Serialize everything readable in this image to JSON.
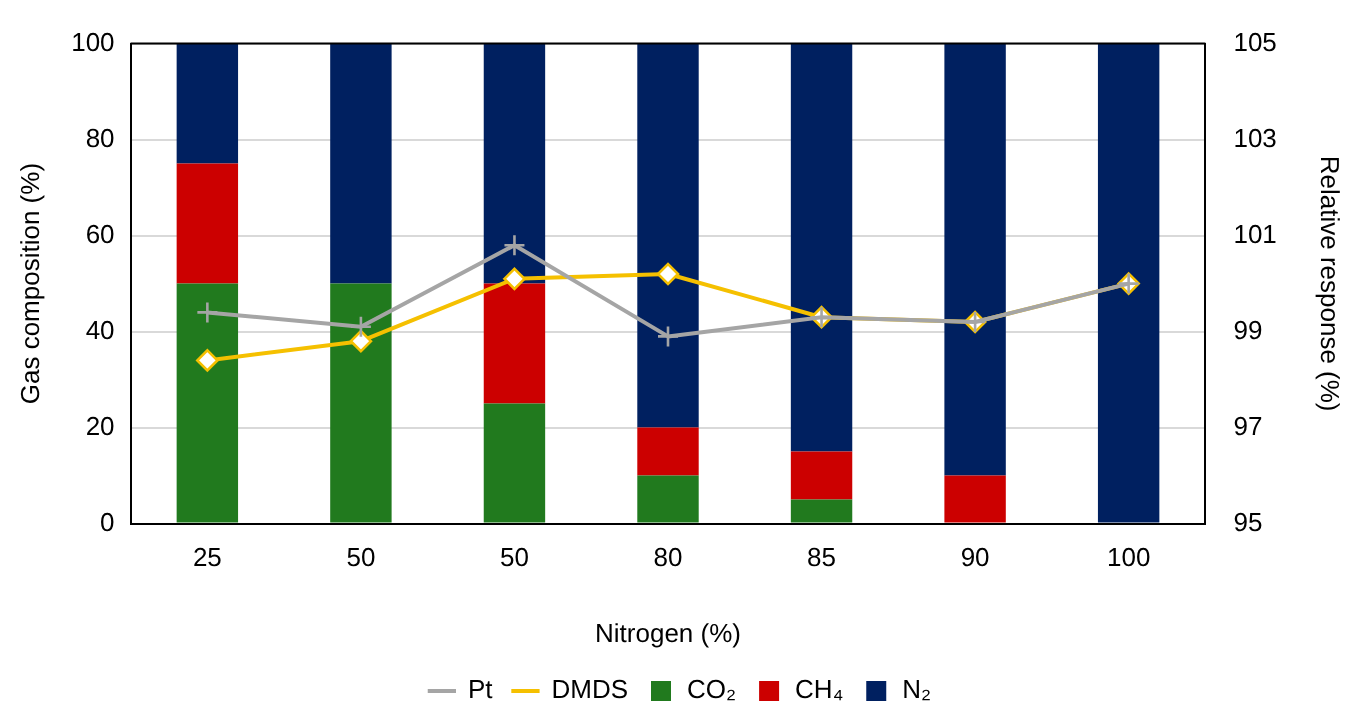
{
  "chart_data": {
    "type": "bar",
    "stacked": true,
    "xlabel": "Nitrogen (%)",
    "ylabel": "Gas composition (%)",
    "y2label": "Relative response (%)",
    "categories": [
      "25",
      "50",
      "50",
      "80",
      "85",
      "90",
      "100"
    ],
    "series": [
      {
        "name": "CO₂",
        "color": "#217a1e",
        "values": [
          50,
          50,
          25,
          10,
          5,
          0,
          0
        ]
      },
      {
        "name": "CH₄",
        "color": "#cc0000",
        "values": [
          25,
          0,
          25,
          10,
          10,
          10,
          0
        ]
      },
      {
        "name": "N₂",
        "color": "#002060",
        "values": [
          25,
          50,
          50,
          80,
          85,
          90,
          100
        ]
      },
      {
        "name": "Pt",
        "type": "line",
        "axis": "y2",
        "marker": "cross",
        "color": "#a5a5a5",
        "values": [
          99.4,
          99.1,
          100.8,
          98.9,
          99.3,
          99.2,
          100.0
        ]
      },
      {
        "name": "DMDS",
        "type": "line",
        "axis": "y2",
        "marker": "diamond",
        "color": "#f5c000",
        "values": [
          98.4,
          98.8,
          100.1,
          100.2,
          99.3,
          99.2,
          100.0
        ]
      }
    ],
    "ylim": [
      0,
      100
    ],
    "yticks": [
      0,
      20,
      40,
      60,
      80,
      100
    ],
    "y2lim": [
      95,
      105
    ],
    "y2ticks": [
      95,
      97,
      99,
      101,
      103,
      105
    ],
    "grid": "y",
    "legend": "bottom"
  }
}
